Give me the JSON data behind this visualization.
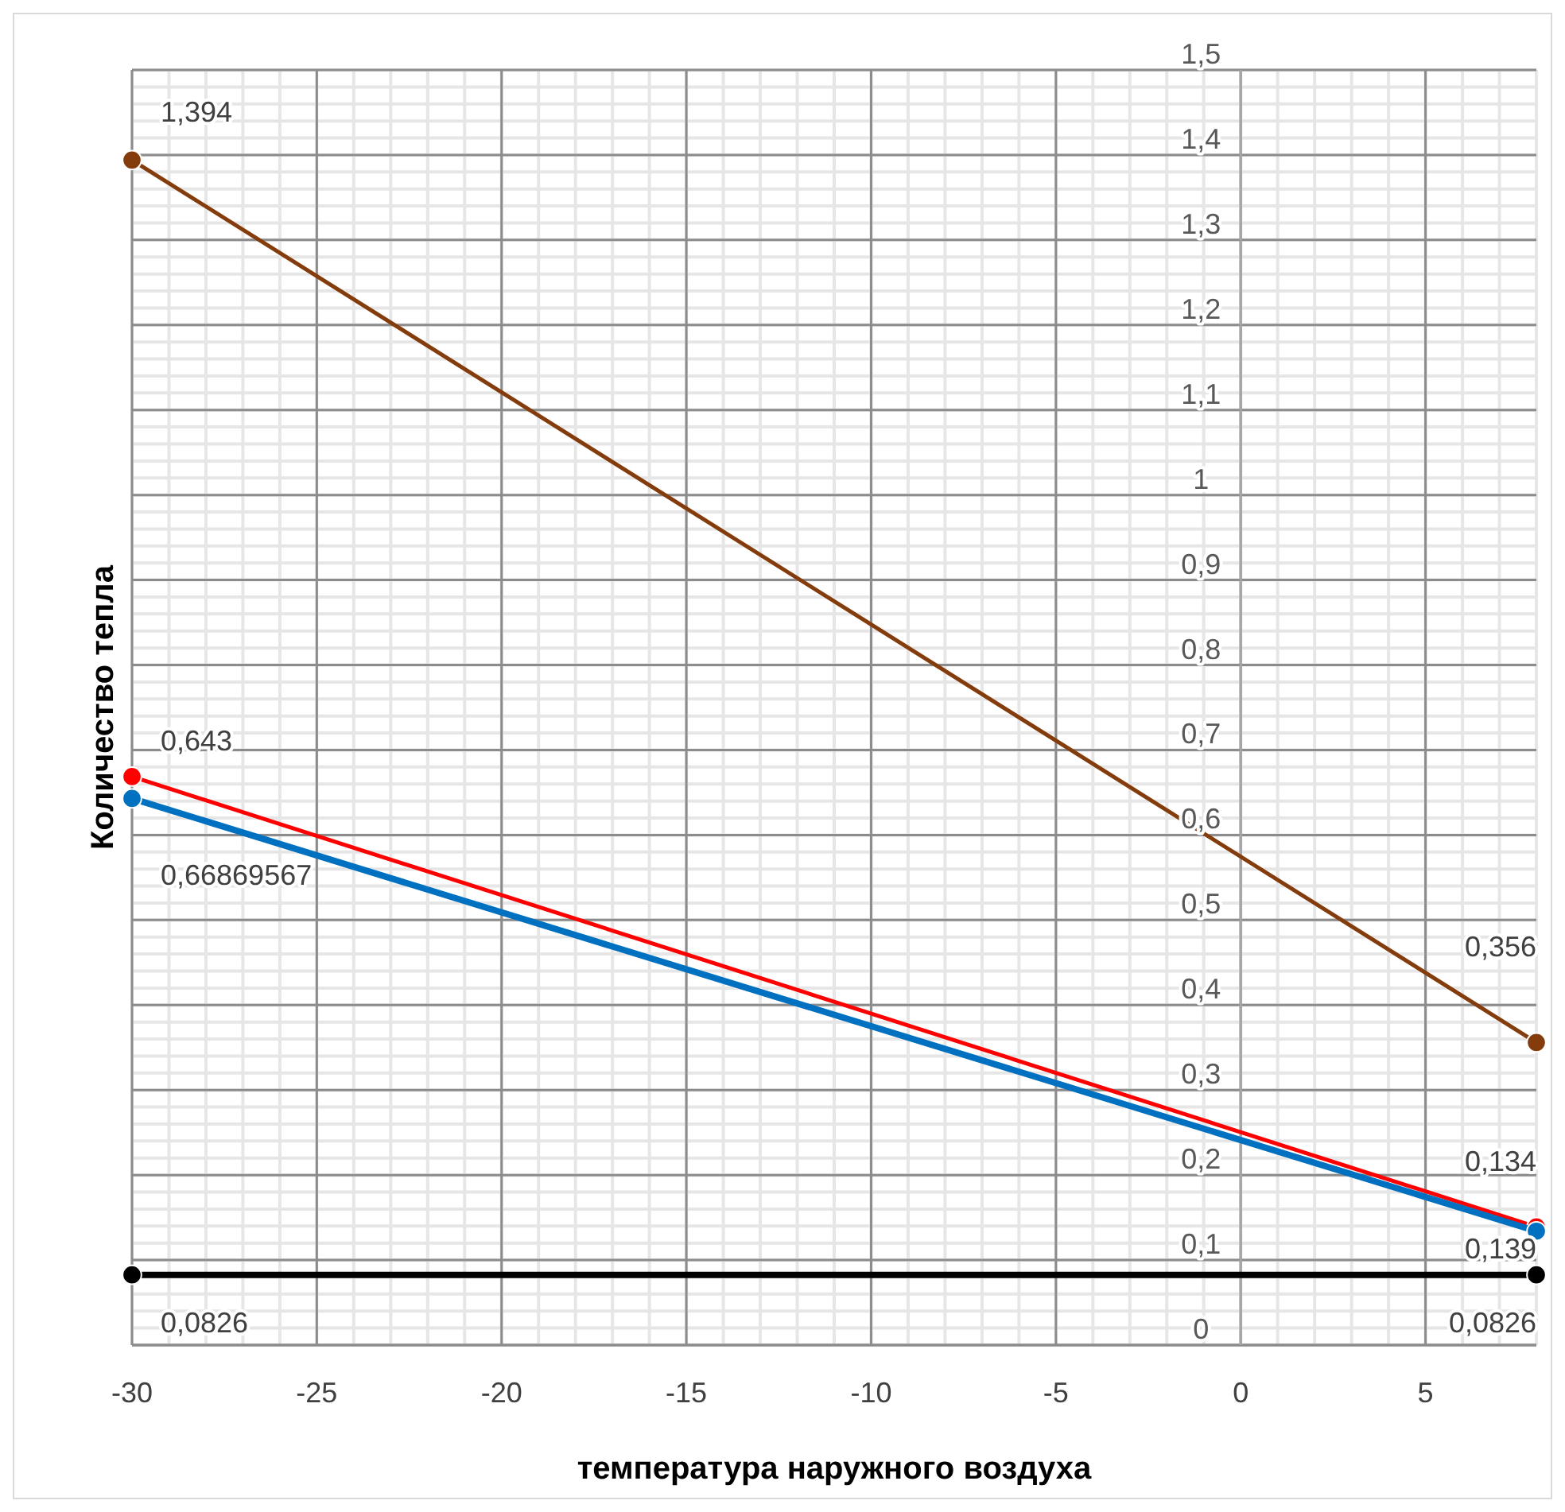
{
  "chart_data": {
    "type": "line",
    "xlabel": "температура наружного воздуха",
    "ylabel": "Количество тепла",
    "x": [
      -30,
      8
    ],
    "series": [
      {
        "color": "#843c0c",
        "values": [
          1.394,
          0.356
        ],
        "value_labels": [
          "1,394",
          "0,356"
        ]
      },
      {
        "color": "#ff0000",
        "values": [
          0.66869567,
          0.139
        ],
        "value_labels": [
          "0,66869567",
          "0,139"
        ]
      },
      {
        "color": "#0070c0",
        "values": [
          0.643,
          0.134
        ],
        "value_labels": [
          "0,643",
          "0,134"
        ]
      },
      {
        "color": "#000000",
        "values": [
          0.0826,
          0.0826
        ],
        "value_labels": [
          "0,0826",
          "0,0826"
        ]
      }
    ],
    "xlim": [
      -30,
      8
    ],
    "xticks": [
      -30,
      -25,
      -20,
      -15,
      -10,
      -5,
      0,
      5
    ],
    "ylim": [
      0,
      1.5
    ],
    "yticks": [
      0,
      {
        "value": 0.1,
        "label": "0,1"
      },
      {
        "value": 0.2,
        "label": "0,2"
      },
      {
        "value": 0.3,
        "label": "0,3"
      },
      {
        "value": 0.4,
        "label": "0,4"
      },
      {
        "value": 0.5,
        "label": "0,5"
      },
      {
        "value": 0.6,
        "label": "0,6"
      },
      {
        "value": 0.7,
        "label": "0,7"
      },
      {
        "value": 0.8,
        "label": "0,8"
      },
      {
        "value": 0.9,
        "label": "0,9"
      },
      1,
      {
        "value": 1.1,
        "label": "1,1"
      },
      {
        "value": 1.2,
        "label": "1,2"
      },
      {
        "value": 1.3,
        "label": "1,3"
      },
      {
        "value": 1.4,
        "label": "1,4"
      },
      {
        "value": 1.5,
        "label": "1,5"
      }
    ],
    "grid": true,
    "marker": "circle",
    "line_style": "solid"
  }
}
